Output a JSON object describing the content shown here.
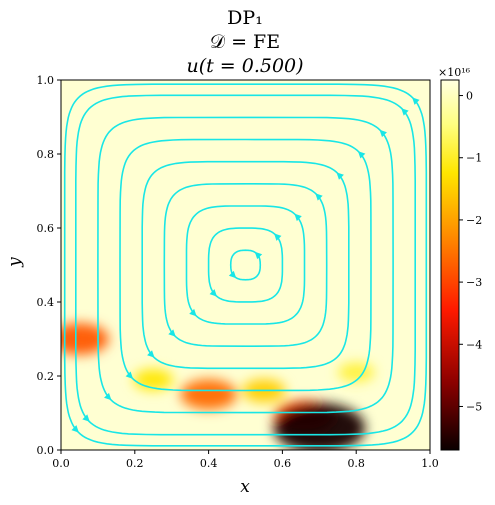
{
  "chart_data": {
    "type": "heatmap",
    "title_lines": [
      "DP₁",
      "𝒟 = FE",
      "u(t = 0.500)"
    ],
    "xlabel": "x",
    "ylabel": "y",
    "xlim": [
      0.0,
      1.0
    ],
    "ylim": [
      0.0,
      1.0
    ],
    "x_ticks": [
      "0.0",
      "0.2",
      "0.4",
      "0.6",
      "0.8",
      "1.0"
    ],
    "y_ticks": [
      "0.0",
      "0.2",
      "0.4",
      "0.6",
      "0.8",
      "1.0"
    ],
    "colorbar": {
      "scale_label": "×10¹⁶",
      "range": [
        -5.7,
        0.25
      ],
      "ticks": [
        "0",
        "−1",
        "−2",
        "−3",
        "−4",
        "−5"
      ],
      "tick_values": [
        0,
        -1,
        -2,
        -3,
        -4,
        -5
      ],
      "colormap": "hot"
    },
    "background_value": 0,
    "field_blobs": [
      {
        "x": 0.7,
        "y": 0.06,
        "value": -5.6
      },
      {
        "x": 0.66,
        "y": 0.09,
        "value": -3.0
      },
      {
        "x": 0.4,
        "y": 0.15,
        "value": -2.6
      },
      {
        "x": 0.05,
        "y": 0.3,
        "value": -2.8
      },
      {
        "x": 0.55,
        "y": 0.16,
        "value": -1.5
      },
      {
        "x": 0.25,
        "y": 0.19,
        "value": -1.2
      },
      {
        "x": 0.8,
        "y": 0.21,
        "value": -0.9
      }
    ],
    "streamlines": {
      "color": "#19e6e6",
      "center": {
        "x": 0.5,
        "y": 0.5
      },
      "rotation": "counter-clockwise",
      "levels": [
        0.04,
        0.1,
        0.16,
        0.22,
        0.28,
        0.34,
        0.4,
        0.46,
        0.49
      ]
    },
    "colors": {
      "axes_frame": "#000000",
      "streamline": "#19e6e6"
    }
  }
}
